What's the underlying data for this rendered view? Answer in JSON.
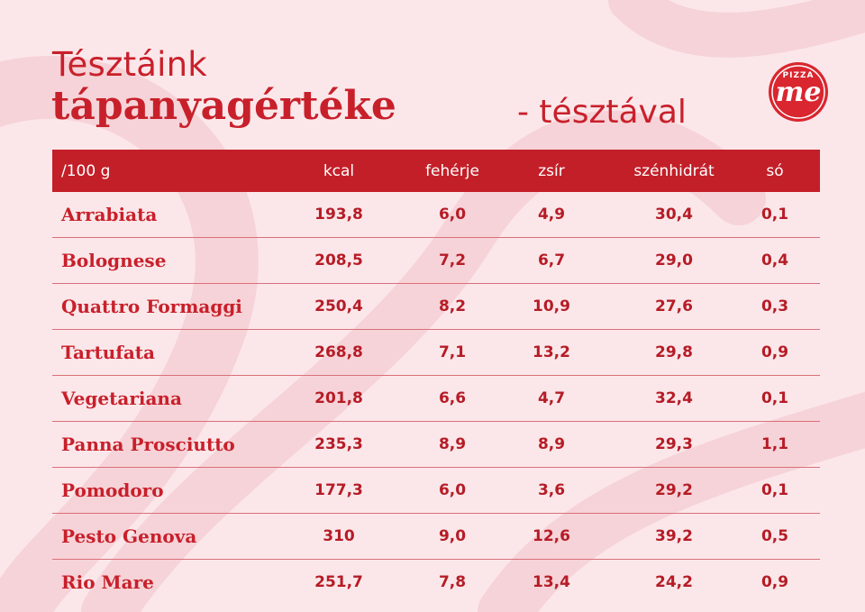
{
  "title": {
    "line1": "Tésztáink",
    "line2": "tápanyagértéke",
    "suffix": "- tésztával"
  },
  "logo": {
    "top_text": "PIZZA",
    "main_text": "me"
  },
  "colors": {
    "brand_red": "#c31f28",
    "background": "#fbe7ea"
  },
  "table": {
    "headers": [
      "/100 g",
      "kcal",
      "fehérje",
      "zsír",
      "szénhidrát",
      "só"
    ],
    "rows": [
      {
        "name": "Arrabiata",
        "values": [
          "193,8",
          "6,0",
          "4,9",
          "30,4",
          "0,1"
        ]
      },
      {
        "name": "Bolognese",
        "values": [
          "208,5",
          "7,2",
          "6,7",
          "29,0",
          "0,4"
        ]
      },
      {
        "name": "Quattro Formaggi",
        "values": [
          "250,4",
          "8,2",
          "10,9",
          "27,6",
          "0,3"
        ]
      },
      {
        "name": "Tartufata",
        "values": [
          "268,8",
          "7,1",
          "13,2",
          "29,8",
          "0,9"
        ]
      },
      {
        "name": "Vegetariana",
        "values": [
          "201,8",
          "6,6",
          "4,7",
          "32,4",
          "0,1"
        ]
      },
      {
        "name": "Panna Prosciutto",
        "values": [
          "235,3",
          "8,9",
          "8,9",
          "29,3",
          "1,1"
        ]
      },
      {
        "name": "Pomodoro",
        "values": [
          "177,3",
          "6,0",
          "3,6",
          "29,2",
          "0,1"
        ]
      },
      {
        "name": "Pesto Genova",
        "values": [
          "310",
          "9,0",
          "12,6",
          "39,2",
          "0,5"
        ]
      },
      {
        "name": "Rio Mare",
        "values": [
          "251,7",
          "7,8",
          "13,4",
          "24,2",
          "0,9"
        ]
      }
    ]
  }
}
